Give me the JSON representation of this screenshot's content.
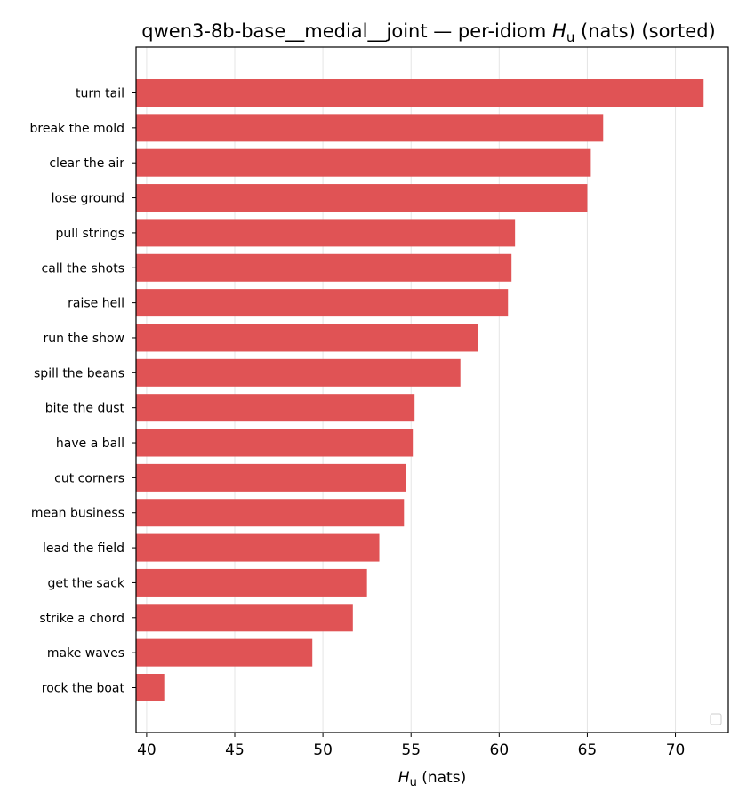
{
  "chart_data": {
    "type": "bar",
    "orientation": "horizontal",
    "title_prefix": "qwen3-8b-base__medial__joint — per-idiom ",
    "title_symbol": "H",
    "title_subscript": "u",
    "title_suffix": " (nats) (sorted)",
    "xlabel_symbol": "H",
    "xlabel_subscript": "u",
    "xlabel_suffix": " (nats)",
    "xlim": [
      39.4,
      73.0
    ],
    "xticks": [
      "40",
      "45",
      "50",
      "55",
      "60",
      "65",
      "70"
    ],
    "grid_x": true,
    "legend": "lower-right (empty)",
    "bar_color": "#e05355",
    "categories": [
      "turn tail",
      "break the mold",
      "clear the air",
      "lose ground",
      "pull strings",
      "call the shots",
      "raise hell",
      "run the show",
      "spill the beans",
      "bite the dust",
      "have a ball",
      "cut corners",
      "mean business",
      "lead the field",
      "get the sack",
      "strike a chord",
      "make waves",
      "rock the boat"
    ],
    "values": [
      71.6,
      65.9,
      65.2,
      65.0,
      60.9,
      60.7,
      60.5,
      58.8,
      57.8,
      55.2,
      55.1,
      54.7,
      54.6,
      53.2,
      52.5,
      51.7,
      49.4,
      41.0
    ]
  }
}
